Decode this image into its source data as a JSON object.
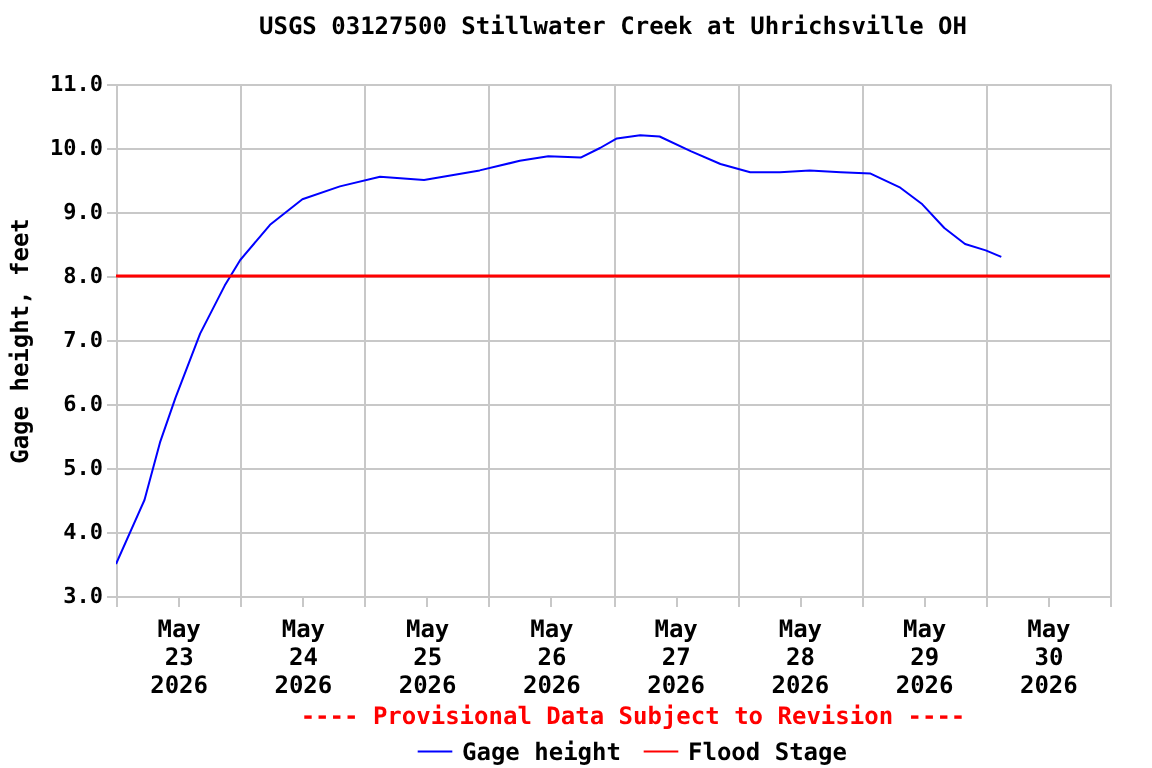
{
  "chart_data": {
    "type": "line",
    "title": "USGS 03127500 Stillwater Creek at Uhrichsville OH",
    "ylabel": "Gage height, feet",
    "x": [
      "2026-05-23T00:00",
      "2026-05-23T05:30",
      "2026-05-23T08:30",
      "2026-05-23T11:30",
      "2026-05-23T16:15",
      "2026-05-23T21:00",
      "2026-05-24T00:00",
      "2026-05-24T05:45",
      "2026-05-24T12:00",
      "2026-05-24T19:15",
      "2026-05-25T03:00",
      "2026-05-25T11:30",
      "2026-05-25T22:15",
      "2026-05-26T06:00",
      "2026-05-26T11:30",
      "2026-05-26T17:45",
      "2026-05-26T21:30",
      "2026-05-27T00:45",
      "2026-05-27T05:15",
      "2026-05-27T09:00",
      "2026-05-27T15:00",
      "2026-05-27T20:45",
      "2026-05-28T02:30",
      "2026-05-28T08:15",
      "2026-05-28T14:00",
      "2026-05-28T20:00",
      "2026-05-29T01:45",
      "2026-05-29T07:30",
      "2026-05-29T11:45",
      "2026-05-29T16:00",
      "2026-05-29T20:00",
      "2026-05-30T00:00",
      "2026-05-30T03:00"
    ],
    "series": [
      {
        "name": "Gage height",
        "color": "#0000ff",
        "values": [
          3.5,
          4.5,
          5.4,
          6.1,
          7.1,
          7.85,
          8.25,
          8.8,
          9.2,
          9.4,
          9.55,
          9.5,
          9.65,
          9.8,
          9.87,
          9.85,
          10.0,
          10.15,
          10.2,
          10.18,
          9.95,
          9.75,
          9.62,
          9.62,
          9.65,
          9.62,
          9.6,
          9.38,
          9.12,
          8.75,
          8.5,
          8.4,
          8.3
        ]
      }
    ],
    "ref_lines": [
      {
        "axis": "y",
        "value": 8.0,
        "label": "Flood Stage",
        "color": "#ff0000"
      }
    ],
    "xlim": [
      "2026-05-23T00:00",
      "2026-05-31T00:00"
    ],
    "xticks": [
      {
        "value": "2026-05-23T00:00",
        "label": null
      },
      {
        "value": "2026-05-23T12:00",
        "label": "May\n23\n2026"
      },
      {
        "value": "2026-05-24T00:00",
        "label": null
      },
      {
        "value": "2026-05-24T12:00",
        "label": "May\n24\n2026"
      },
      {
        "value": "2026-05-25T00:00",
        "label": null
      },
      {
        "value": "2026-05-25T12:00",
        "label": "May\n25\n2026"
      },
      {
        "value": "2026-05-26T00:00",
        "label": null
      },
      {
        "value": "2026-05-26T12:00",
        "label": "May\n26\n2026"
      },
      {
        "value": "2026-05-27T00:00",
        "label": null
      },
      {
        "value": "2026-05-27T12:00",
        "label": "May\n27\n2026"
      },
      {
        "value": "2026-05-28T00:00",
        "label": null
      },
      {
        "value": "2026-05-28T12:00",
        "label": "May\n28\n2026"
      },
      {
        "value": "2026-05-29T00:00",
        "label": null
      },
      {
        "value": "2026-05-29T12:00",
        "label": "May\n29\n2026"
      },
      {
        "value": "2026-05-30T00:00",
        "label": null
      },
      {
        "value": "2026-05-30T12:00",
        "label": "May\n30\n2026"
      },
      {
        "value": "2026-05-31T00:00",
        "label": null
      }
    ],
    "ylim": [
      3.0,
      11.0
    ],
    "yticks": [
      {
        "value": 3,
        "label": "3.0"
      },
      {
        "value": 4,
        "label": "4.0"
      },
      {
        "value": 5,
        "label": "5.0"
      },
      {
        "value": 6,
        "label": "6.0"
      },
      {
        "value": 7,
        "label": "7.0"
      },
      {
        "value": 8,
        "label": "8.0"
      },
      {
        "value": 9,
        "label": "9.0"
      },
      {
        "value": 10,
        "label": "10.0"
      },
      {
        "value": 11,
        "label": "11.0"
      }
    ],
    "grid": true,
    "legend": "bottom",
    "line_style": "solid",
    "annotations": [
      "---- Provisional Data Subject to Revision ----"
    ]
  }
}
